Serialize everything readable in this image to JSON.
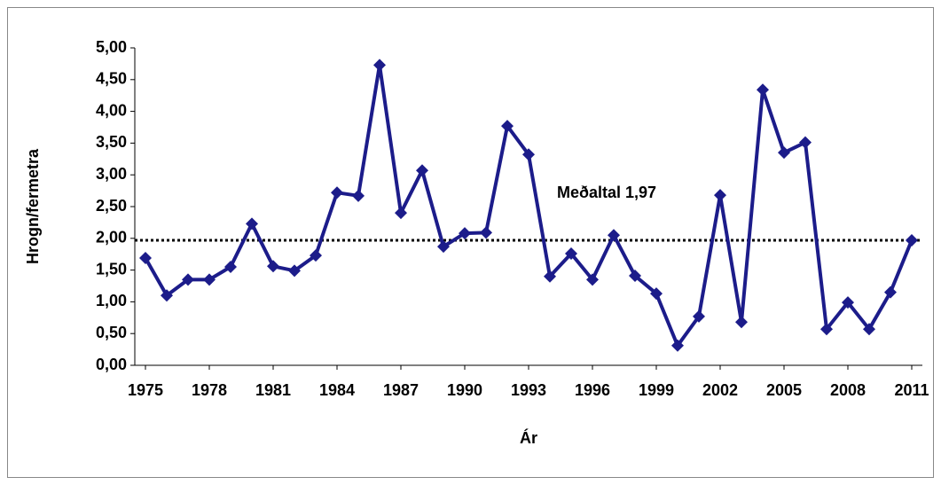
{
  "chart_data": {
    "type": "line",
    "x_label": "Ár",
    "y_label": "Hrogn/fermetra",
    "x": [
      1975,
      1976,
      1977,
      1978,
      1979,
      1980,
      1981,
      1982,
      1983,
      1984,
      1985,
      1986,
      1987,
      1988,
      1989,
      1990,
      1991,
      1992,
      1993,
      1994,
      1995,
      1996,
      1997,
      1998,
      1999,
      2000,
      2001,
      2002,
      2003,
      2004,
      2005,
      2006,
      2007,
      2008,
      2009,
      2010,
      2011
    ],
    "series": [
      {
        "color": "#1c1c8a",
        "values": [
          1.69,
          1.1,
          1.35,
          1.35,
          1.55,
          2.23,
          1.56,
          1.49,
          1.73,
          2.72,
          2.67,
          4.73,
          2.4,
          3.07,
          1.87,
          2.08,
          2.09,
          3.77,
          3.32,
          1.4,
          1.76,
          1.35,
          2.05,
          1.41,
          1.13,
          0.31,
          0.77,
          2.68,
          0.68,
          4.34,
          3.35,
          3.51,
          0.57,
          0.99,
          0.57,
          1.15,
          1.97
        ]
      }
    ],
    "reference_line": {
      "value": 1.97,
      "label": "Meðaltal 1,97"
    },
    "xlim": [
      1974.5,
      2011.5
    ],
    "xticks": [
      1975,
      1978,
      1981,
      1984,
      1987,
      1990,
      1993,
      1996,
      1999,
      2002,
      2005,
      2008,
      2011
    ],
    "ylim": [
      0,
      5
    ],
    "yticks": [
      {
        "value": 0,
        "label": "0,00"
      },
      {
        "value": 0.5,
        "label": "0,50"
      },
      {
        "value": 1,
        "label": "1,00"
      },
      {
        "value": 1.5,
        "label": "1,50"
      },
      {
        "value": 2,
        "label": "2,00"
      },
      {
        "value": 2.5,
        "label": "2,50"
      },
      {
        "value": 3,
        "label": "3,00"
      },
      {
        "value": 3.5,
        "label": "3,50"
      },
      {
        "value": 4,
        "label": "4,00"
      },
      {
        "value": 4.5,
        "label": "4,50"
      },
      {
        "value": 5,
        "label": "5,00"
      }
    ],
    "grid": false
  }
}
